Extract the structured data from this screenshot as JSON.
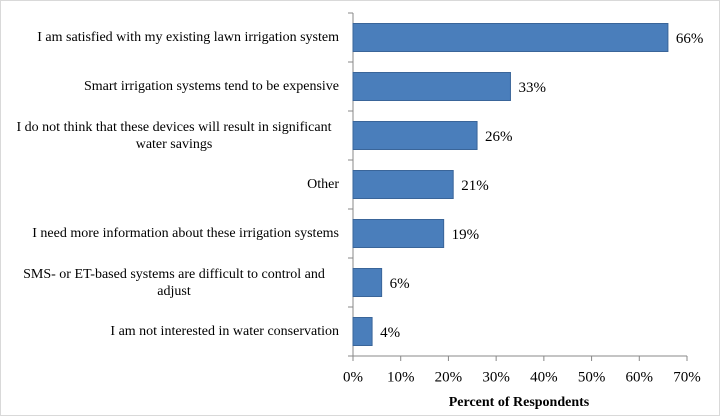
{
  "chart_data": {
    "type": "bar",
    "orientation": "horizontal",
    "x_label": "Percent of Respondents",
    "categories": [
      "I am satisfied with my existing lawn irrigation system",
      "Smart irrigation systems tend to be expensive",
      "I do not think that these devices will result in significant water savings",
      "Other",
      "I need more information about these irrigation systems",
      "SMS- or ET-based systems are difficult to control and adjust",
      "I am not interested in water conservation"
    ],
    "values": [
      66,
      33,
      26,
      21,
      19,
      6,
      4
    ],
    "value_labels": [
      "66%",
      "33%",
      "26%",
      "21%",
      "19%",
      "6%",
      "4%"
    ],
    "color": "#4a7ebb",
    "xlim": [
      0,
      70
    ],
    "xticks": [
      {
        "value": 0,
        "label": "0%"
      },
      {
        "value": 10,
        "label": "10%"
      },
      {
        "value": 20,
        "label": "20%"
      },
      {
        "value": 30,
        "label": "30%"
      },
      {
        "value": 40,
        "label": "40%"
      },
      {
        "value": 50,
        "label": "50%"
      },
      {
        "value": 60,
        "label": "60%"
      },
      {
        "value": 70,
        "label": "70%"
      }
    ]
  }
}
